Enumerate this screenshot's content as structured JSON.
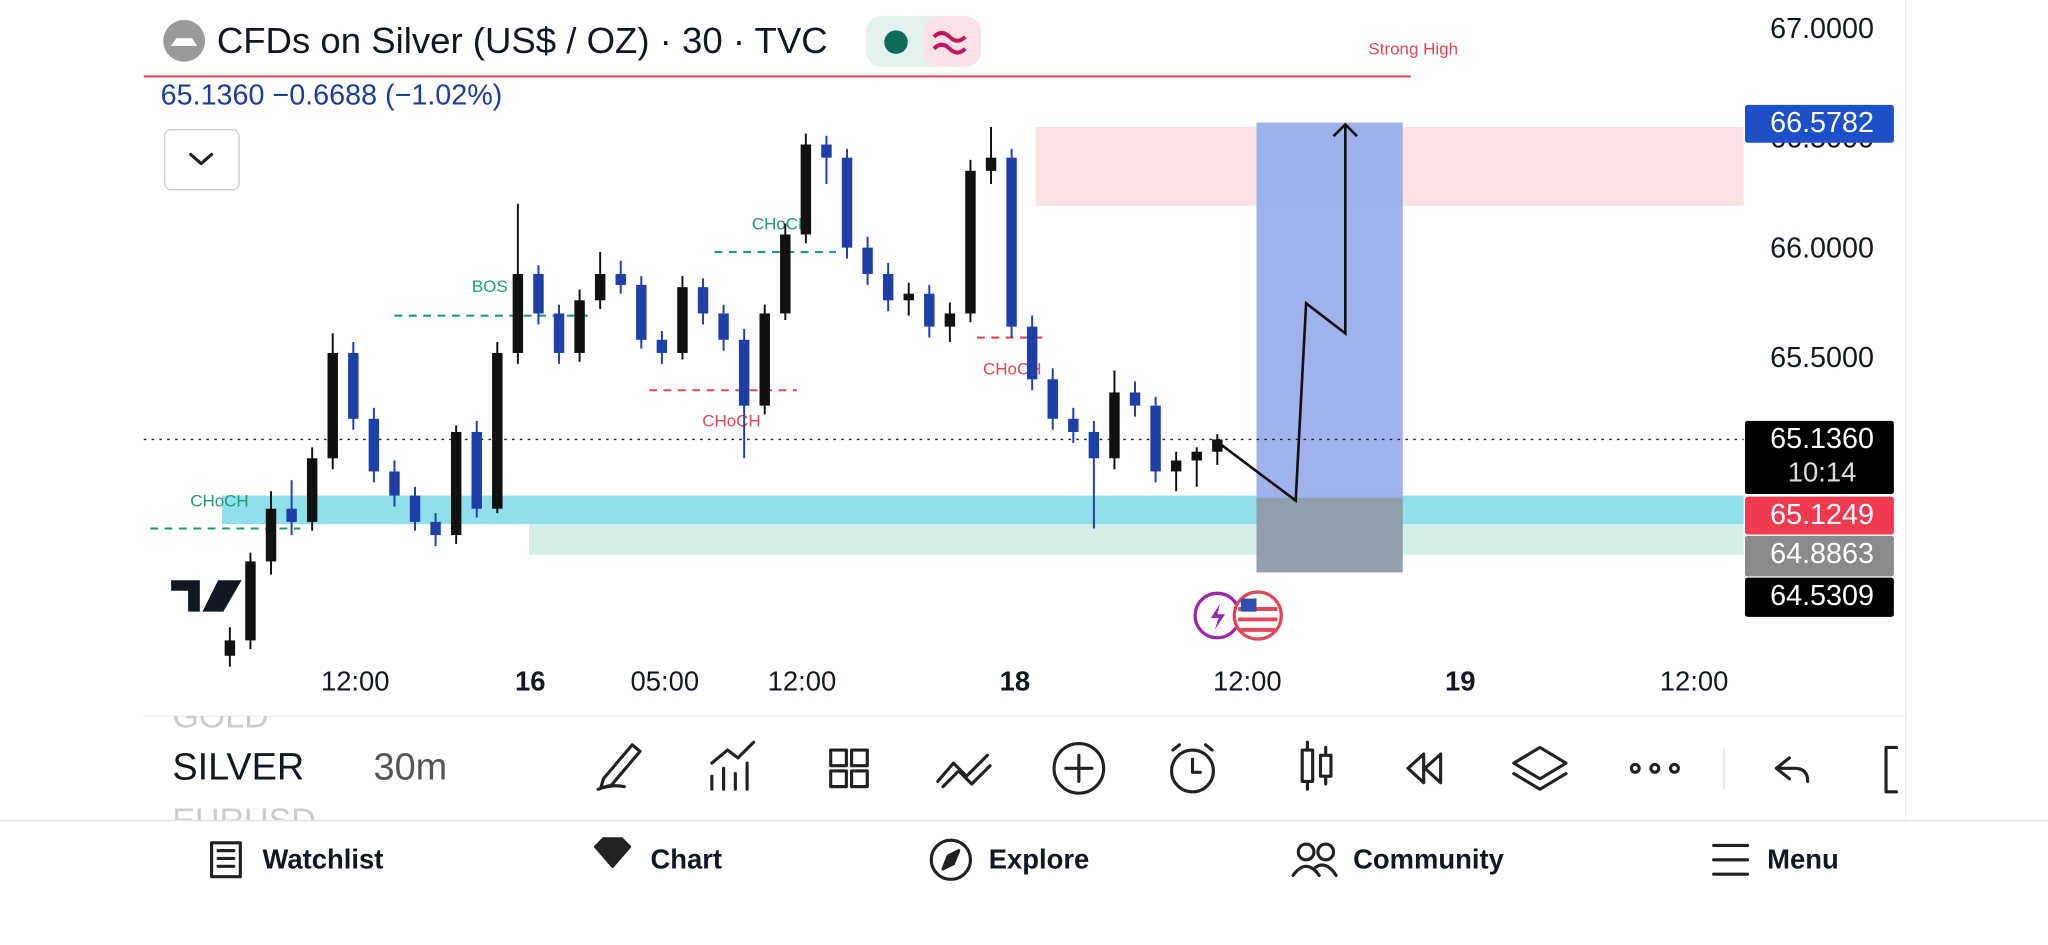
{
  "header": {
    "title": "CFDs on Silver (US$ / OZ) · 30 · TVC",
    "quote": "65.1360  −0.6688 (−1.02%)"
  },
  "chart_data": {
    "type": "candlestick",
    "up_color": "#111111",
    "down_color": "#1e3fa8",
    "candles": [
      [
        64.15,
        64.28,
        64.1,
        64.22
      ],
      [
        64.22,
        64.62,
        64.18,
        64.58
      ],
      [
        64.58,
        64.9,
        64.52,
        64.82
      ],
      [
        64.82,
        64.95,
        64.7,
        64.76
      ],
      [
        64.76,
        65.1,
        64.72,
        65.05
      ],
      [
        65.05,
        65.62,
        65.0,
        65.53
      ],
      [
        65.53,
        65.58,
        65.18,
        65.23
      ],
      [
        65.23,
        65.28,
        64.94,
        64.99
      ],
      [
        64.99,
        65.04,
        64.83,
        64.88
      ],
      [
        64.88,
        64.92,
        64.72,
        64.76
      ],
      [
        64.76,
        64.8,
        64.65,
        64.7
      ],
      [
        64.7,
        65.2,
        64.66,
        65.17
      ],
      [
        65.17,
        65.22,
        64.78,
        64.82
      ],
      [
        64.82,
        65.58,
        64.8,
        65.53
      ],
      [
        65.53,
        66.21,
        65.48,
        65.89
      ],
      [
        65.89,
        65.93,
        65.66,
        65.71
      ],
      [
        65.71,
        65.75,
        65.48,
        65.53
      ],
      [
        65.53,
        65.82,
        65.49,
        65.77
      ],
      [
        65.77,
        65.99,
        65.73,
        65.89
      ],
      [
        65.89,
        65.95,
        65.8,
        65.84
      ],
      [
        65.84,
        65.88,
        65.55,
        65.59
      ],
      [
        65.59,
        65.63,
        65.48,
        65.53
      ],
      [
        65.53,
        65.88,
        65.5,
        65.83
      ],
      [
        65.83,
        65.87,
        65.66,
        65.71
      ],
      [
        65.71,
        65.75,
        65.54,
        65.59
      ],
      [
        65.59,
        65.64,
        65.05,
        65.29
      ],
      [
        65.29,
        65.75,
        65.25,
        65.71
      ],
      [
        65.71,
        66.12,
        65.68,
        66.07
      ],
      [
        66.07,
        66.53,
        66.03,
        66.48
      ],
      [
        66.48,
        66.52,
        66.3,
        66.42
      ],
      [
        66.42,
        66.46,
        65.96,
        66.01
      ],
      [
        66.01,
        66.06,
        65.84,
        65.89
      ],
      [
        65.89,
        65.94,
        65.72,
        65.77
      ],
      [
        65.77,
        65.85,
        65.7,
        65.8
      ],
      [
        65.8,
        65.84,
        65.6,
        65.65
      ],
      [
        65.65,
        65.76,
        65.58,
        65.71
      ],
      [
        65.71,
        66.41,
        65.67,
        66.36
      ],
      [
        66.36,
        66.56,
        66.3,
        66.42
      ],
      [
        66.42,
        66.46,
        65.6,
        65.65
      ],
      [
        65.65,
        65.7,
        65.36,
        65.41
      ],
      [
        65.41,
        65.46,
        65.18,
        65.23
      ],
      [
        65.23,
        65.28,
        65.12,
        65.17
      ],
      [
        65.17,
        65.22,
        64.73,
        65.05
      ],
      [
        65.05,
        65.45,
        65.0,
        65.35
      ],
      [
        65.35,
        65.4,
        65.24,
        65.29
      ],
      [
        65.29,
        65.33,
        64.94,
        64.99
      ],
      [
        64.99,
        65.08,
        64.9,
        65.04
      ],
      [
        65.04,
        65.1,
        64.92,
        65.08
      ],
      [
        65.08,
        65.16,
        65.02,
        65.136
      ]
    ],
    "ylim": [
      64.137,
      67.137
    ],
    "yticks": [
      {
        "value": 67,
        "label": "67.0000"
      },
      {
        "value": 66.5,
        "label": "66.5000"
      },
      {
        "value": 66,
        "label": "66.0000"
      },
      {
        "value": 65.5,
        "label": "65.5000"
      }
    ],
    "xticks": [
      "12:00",
      "16",
      "05:00",
      "12:00",
      "18",
      "12:00",
      "19",
      "12:00"
    ],
    "annotations": [
      {
        "text": "Strong High",
        "level": 66.79,
        "color": "#e0485a"
      },
      {
        "text": "BOS",
        "level": 65.7,
        "color": "#1f9a74"
      },
      {
        "text": "CHoCH",
        "level": 65.99,
        "color": "#1f9a74"
      },
      {
        "text": "CHoCH",
        "level": 65.36,
        "color": "#e0485a"
      },
      {
        "text": "CHoCH",
        "level": 65.6,
        "color": "#e0485a"
      },
      {
        "text": "CHoCH",
        "level": 64.73,
        "color": "#1f9a74"
      }
    ],
    "zones": [
      {
        "from": 66.56,
        "to": 66.2,
        "color": "#fde2e2"
      },
      {
        "from": 64.88,
        "to": 64.75,
        "color": "#8fe0ea"
      },
      {
        "from": 64.75,
        "to": 64.61,
        "color": "#d3efe7"
      },
      {
        "from": 66.58,
        "to": 64.87,
        "color": "#9aaeea"
      },
      {
        "from": 64.87,
        "to": 64.53,
        "color": "#8e9aa8"
      }
    ],
    "price_badges": [
      {
        "value": 66.5782,
        "label": "66.5782",
        "color": "#1d4fc9"
      },
      {
        "value": 65.136,
        "label": "65.1360",
        "color": "#000000"
      },
      {
        "value": 65.1249,
        "label": "65.1249",
        "color": "#ef3a4f"
      },
      {
        "value": 64.8863,
        "label": "64.8863",
        "color": "#8a8a8a"
      },
      {
        "value": 64.5309,
        "label": "64.5309",
        "color": "#000000"
      }
    ],
    "countdown": "10:14"
  },
  "toolbar": {
    "symbols": [
      "GOLD",
      "SILVER",
      "EURUSD"
    ],
    "interval": "30m"
  },
  "nav": [
    "Watchlist",
    "Chart",
    "Explore",
    "Community",
    "Menu"
  ]
}
